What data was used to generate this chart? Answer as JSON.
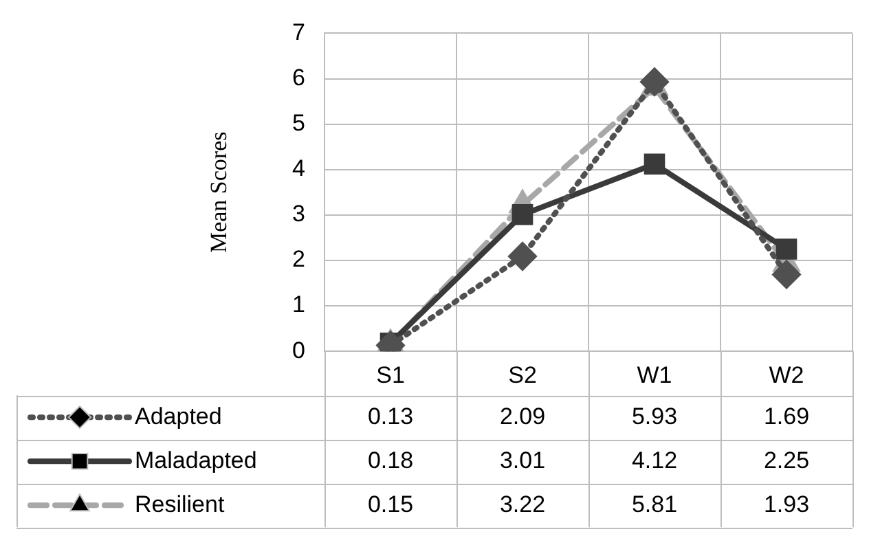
{
  "chart_data": {
    "type": "line",
    "ylabel": "Mean Scores",
    "categories": [
      "S1",
      "S2",
      "W1",
      "W2"
    ],
    "ylim": [
      0,
      7
    ],
    "yticks": [
      0,
      1,
      2,
      3,
      4,
      5,
      6,
      7
    ],
    "grid": true,
    "legend": "bottom",
    "data_labels": true,
    "series": [
      {
        "name": "Adapted",
        "color": "#505050",
        "values": [
          0.13,
          2.09,
          5.93,
          1.69
        ],
        "marker": "diamond",
        "line_style": "dotted"
      },
      {
        "name": "Maladapted",
        "color": "#3a3a3a",
        "values": [
          0.18,
          3.01,
          4.12,
          2.25
        ],
        "marker": "square",
        "line_style": "solid"
      },
      {
        "name": "Resilient",
        "color": "#a8a8a8",
        "values": [
          0.15,
          3.22,
          5.81,
          1.93
        ],
        "marker": "triangle",
        "line_style": "dashed"
      }
    ]
  }
}
